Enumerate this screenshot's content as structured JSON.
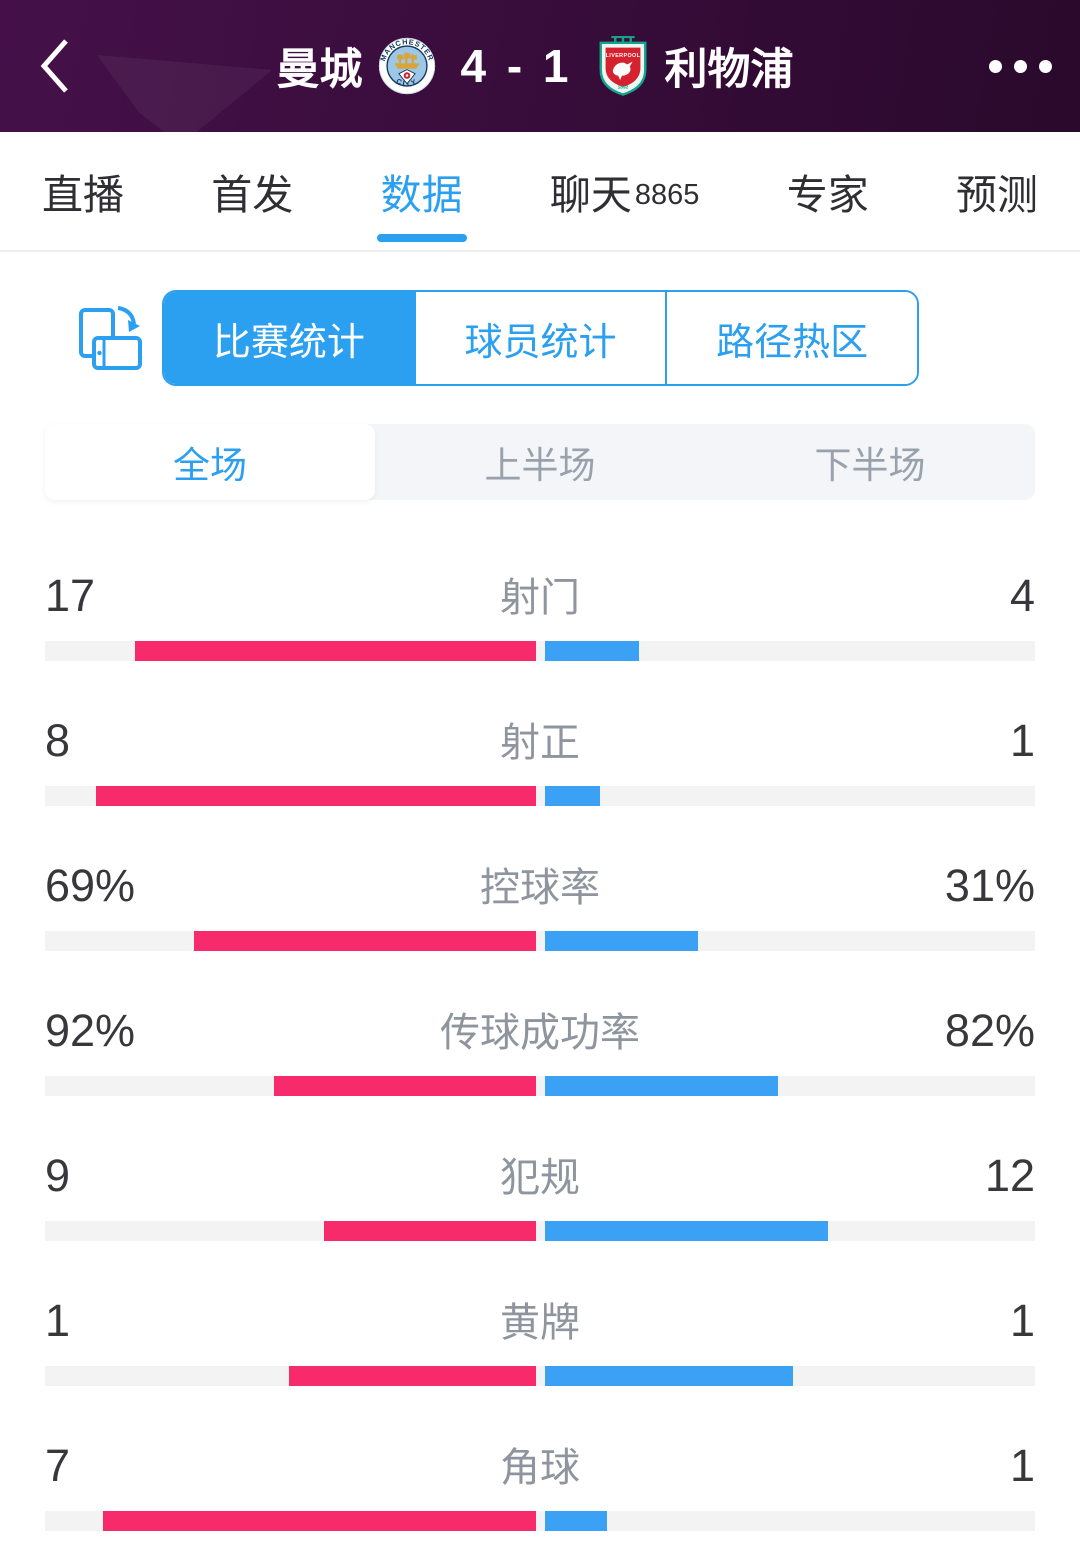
{
  "colors": {
    "accent": "#2b9ff0",
    "home_bar": "#f72a6c",
    "away_bar": "#3aa1f4",
    "header_bg_left": "#451049",
    "header_bg_right": "#2a092c"
  },
  "header": {
    "home_team": "曼城",
    "away_team": "利物浦",
    "score": "4 - 1",
    "back_icon": "chevron-left",
    "more_icon": "ellipsis",
    "home_badge": "manchester-city-crest",
    "away_badge": "liverpool-crest"
  },
  "nav_tabs": [
    {
      "id": "live",
      "label": "直播"
    },
    {
      "id": "lineup",
      "label": "首发"
    },
    {
      "id": "data",
      "label": "数据",
      "active": true
    },
    {
      "id": "chat",
      "label": "聊天",
      "count": "8865"
    },
    {
      "id": "expert",
      "label": "专家"
    },
    {
      "id": "predict",
      "label": "预测"
    }
  ],
  "stats_tabs": [
    {
      "id": "match-stats",
      "label": "比赛统计",
      "active": true
    },
    {
      "id": "player-stats",
      "label": "球员统计"
    },
    {
      "id": "heatmap",
      "label": "路径热区"
    }
  ],
  "period_tabs": [
    {
      "id": "full",
      "label": "全场",
      "active": true
    },
    {
      "id": "first-half",
      "label": "上半场"
    },
    {
      "id": "second-half",
      "label": "下半场"
    }
  ],
  "stats_rows": [
    {
      "id": "shots",
      "label": "射门",
      "home": "17",
      "away": "4",
      "home_val": 17,
      "away_val": 4
    },
    {
      "id": "shots-on-target",
      "label": "射正",
      "home": "8",
      "away": "1",
      "home_val": 8,
      "away_val": 1
    },
    {
      "id": "possession",
      "label": "控球率",
      "home": "69%",
      "away": "31%",
      "home_val": 69,
      "away_val": 31
    },
    {
      "id": "pass-accuracy",
      "label": "传球成功率",
      "home": "92%",
      "away": "82%",
      "home_val": 92,
      "away_val": 82
    },
    {
      "id": "fouls",
      "label": "犯规",
      "home": "9",
      "away": "12",
      "home_val": 9,
      "away_val": 12
    },
    {
      "id": "yellow-cards",
      "label": "黄牌",
      "home": "1",
      "away": "1",
      "home_val": 1,
      "away_val": 1
    },
    {
      "id": "corners",
      "label": "角球",
      "home": "7",
      "away": "1",
      "home_val": 7,
      "away_val": 1
    }
  ],
  "chart_data": {
    "type": "bar",
    "categories": [
      "射门",
      "射正",
      "控球率",
      "传球成功率",
      "犯规",
      "黄牌",
      "角球"
    ],
    "series": [
      {
        "name": "曼城",
        "values": [
          17,
          8,
          69,
          92,
          9,
          1,
          7
        ]
      },
      {
        "name": "利物浦",
        "values": [
          4,
          1,
          31,
          82,
          12,
          1,
          1
        ]
      }
    ],
    "percent_categories": [
      "控球率",
      "传球成功率"
    ],
    "legend_position": "none",
    "layout": "mirrored-center-bars"
  }
}
